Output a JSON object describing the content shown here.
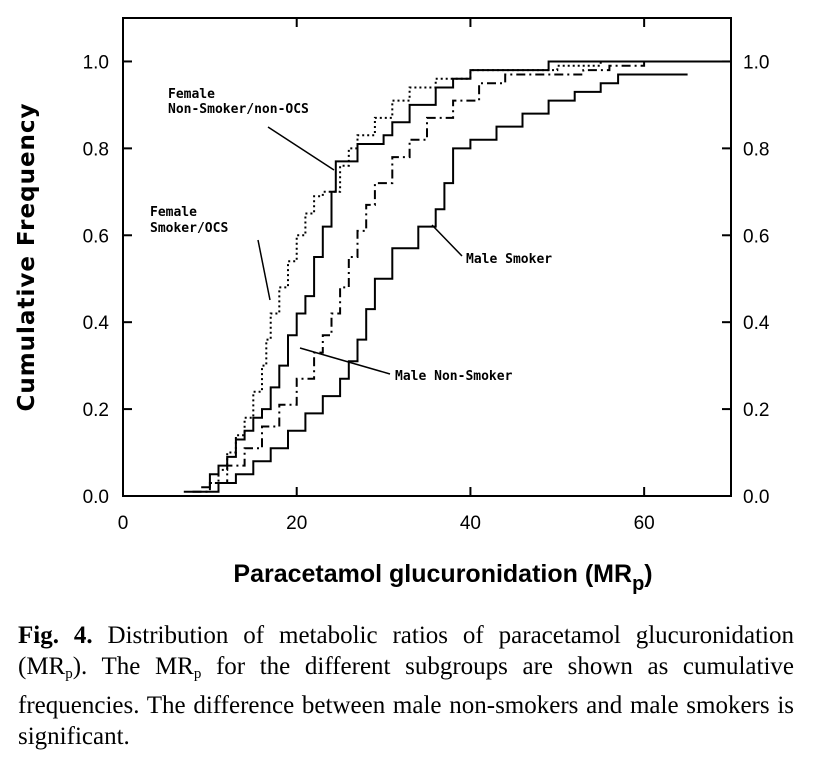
{
  "chart_data": {
    "type": "line",
    "step": true,
    "xlabel": "Paracetamol glucuronidation (MR",
    "xlabel_sub": "p",
    "xlabel_close": ")",
    "ylabel": "Cumulative Frequency",
    "xlim": [
      0,
      70
    ],
    "ylim": [
      0,
      1.1
    ],
    "xticks": [
      0,
      20,
      40,
      60
    ],
    "yticks": [
      0,
      0.2,
      0.4,
      0.6,
      0.8,
      1.0
    ],
    "xtick_labels": [
      "0",
      "20",
      "40",
      "60"
    ],
    "ytick_labels": [
      "0.0",
      "0.2",
      "0.4",
      "0.6",
      "0.8",
      "1.0"
    ],
    "right_ytick_labels": [
      "0.0",
      "0.2",
      "0.4",
      "0.6",
      "0.8",
      "1.0"
    ],
    "annotations": [
      {
        "lines": [
          "Female",
          "Non-Smoker/non-OCS"
        ],
        "points_to": [
          24.5,
          0.77
        ]
      },
      {
        "lines": [
          "Female",
          "Smoker/OCS"
        ],
        "points_to": [
          17,
          0.44
        ]
      },
      {
        "lines": [
          "Male Smoker"
        ],
        "points_to": [
          37,
          0.62
        ]
      },
      {
        "lines": [
          "Male Non-Smoker"
        ],
        "points_to": [
          20,
          0.34
        ]
      }
    ],
    "series": [
      {
        "key": "female_non_smoker",
        "style": "solid",
        "points": [
          [
            9,
            0.02
          ],
          [
            10,
            0.05
          ],
          [
            11,
            0.07
          ],
          [
            12,
            0.09
          ],
          [
            13,
            0.13
          ],
          [
            14,
            0.15
          ],
          [
            15,
            0.18
          ],
          [
            16,
            0.2
          ],
          [
            17,
            0.25
          ],
          [
            18,
            0.3
          ],
          [
            19,
            0.37
          ],
          [
            20,
            0.42
          ],
          [
            21,
            0.46
          ],
          [
            22,
            0.55
          ],
          [
            23,
            0.62
          ],
          [
            24,
            0.7
          ],
          [
            24.5,
            0.77
          ],
          [
            27,
            0.81
          ],
          [
            30,
            0.83
          ],
          [
            31,
            0.86
          ],
          [
            33,
            0.9
          ],
          [
            36,
            0.94
          ],
          [
            38,
            0.96
          ],
          [
            40,
            0.98
          ],
          [
            49,
            1.0
          ],
          [
            70,
            1.0
          ]
        ]
      },
      {
        "key": "female_smoker",
        "style": "dotted",
        "points": [
          [
            10,
            0.03
          ],
          [
            11,
            0.06
          ],
          [
            12,
            0.1
          ],
          [
            13,
            0.14
          ],
          [
            14,
            0.18
          ],
          [
            15,
            0.24
          ],
          [
            16,
            0.3
          ],
          [
            16.5,
            0.36
          ],
          [
            17,
            0.42
          ],
          [
            18,
            0.48
          ],
          [
            19,
            0.54
          ],
          [
            20,
            0.6
          ],
          [
            21,
            0.65
          ],
          [
            22,
            0.69
          ],
          [
            23,
            0.7
          ],
          [
            25,
            0.76
          ],
          [
            26,
            0.8
          ],
          [
            27,
            0.83
          ],
          [
            29,
            0.87
          ],
          [
            31,
            0.91
          ],
          [
            33,
            0.94
          ],
          [
            36,
            0.96
          ],
          [
            40,
            0.98
          ],
          [
            50,
            0.99
          ],
          [
            55,
            1.0
          ],
          [
            70,
            1.0
          ]
        ]
      },
      {
        "key": "male_non_smoker",
        "style": "dash-dot",
        "points": [
          [
            8,
            0.01
          ],
          [
            10,
            0.03
          ],
          [
            12,
            0.07
          ],
          [
            14,
            0.11
          ],
          [
            16,
            0.16
          ],
          [
            18,
            0.21
          ],
          [
            20,
            0.27
          ],
          [
            22,
            0.33
          ],
          [
            23,
            0.37
          ],
          [
            24,
            0.42
          ],
          [
            25,
            0.48
          ],
          [
            26,
            0.55
          ],
          [
            27,
            0.61
          ],
          [
            28,
            0.67
          ],
          [
            29,
            0.72
          ],
          [
            31,
            0.78
          ],
          [
            33,
            0.82
          ],
          [
            35,
            0.87
          ],
          [
            38,
            0.91
          ],
          [
            41,
            0.95
          ],
          [
            44,
            0.97
          ],
          [
            53,
            0.98
          ],
          [
            56,
            0.99
          ],
          [
            60,
            1.0
          ],
          [
            70,
            1.0
          ]
        ]
      },
      {
        "key": "male_smoker",
        "style": "solid",
        "points": [
          [
            7,
            0.01
          ],
          [
            11,
            0.03
          ],
          [
            13,
            0.05
          ],
          [
            15,
            0.08
          ],
          [
            17,
            0.11
          ],
          [
            19,
            0.15
          ],
          [
            21,
            0.19
          ],
          [
            23,
            0.23
          ],
          [
            25,
            0.27
          ],
          [
            26,
            0.31
          ],
          [
            27,
            0.36
          ],
          [
            28,
            0.43
          ],
          [
            29,
            0.5
          ],
          [
            31,
            0.57
          ],
          [
            34,
            0.62
          ],
          [
            36,
            0.66
          ],
          [
            37,
            0.72
          ],
          [
            38,
            0.8
          ],
          [
            40,
            0.82
          ],
          [
            43,
            0.85
          ],
          [
            46,
            0.88
          ],
          [
            49,
            0.91
          ],
          [
            52,
            0.93
          ],
          [
            55,
            0.95
          ],
          [
            57,
            0.97
          ],
          [
            62,
            0.97
          ],
          [
            65,
            0.97
          ]
        ]
      }
    ]
  },
  "caption": {
    "label": "Fig. 4.",
    "t1": " Distribution of metabolic ratios of paracetamol glucuronidation (MR",
    "s1": "p",
    "t2": "). The MR",
    "s2": "p",
    "t3": " for the different subgroups are shown as cumulative frequencies. The difference between male non-smokers and male smokers is significant."
  }
}
